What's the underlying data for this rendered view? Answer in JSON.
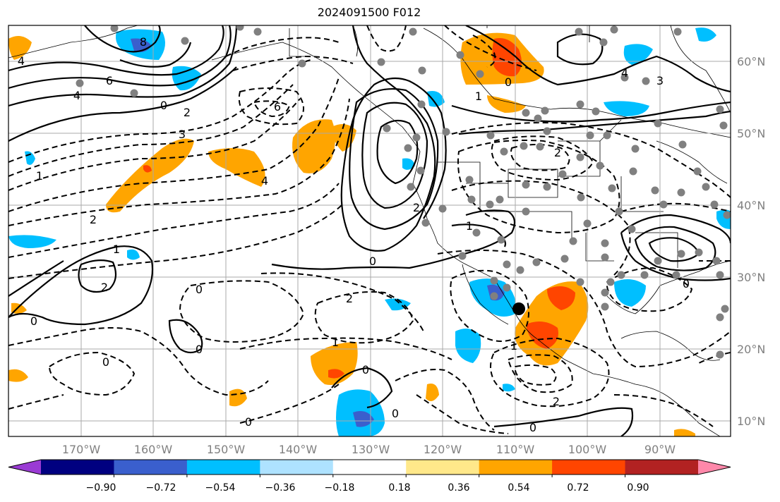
{
  "title": "2024091500 F012",
  "map": {
    "lat_labels": [
      "60°N",
      "50°N",
      "40°N",
      "30°N",
      "20°N",
      "10°N"
    ],
    "lon_labels": [
      "170°W",
      "160°W",
      "150°W",
      "140°W",
      "130°W",
      "120°W",
      "110°W",
      "100°W",
      "90°W"
    ],
    "contour_labels": [
      "4",
      "6",
      "8",
      "4",
      "0",
      "2",
      "3",
      "6",
      "4",
      "1",
      "2",
      "1",
      "2",
      "0",
      "0",
      "2",
      "0",
      "1",
      "0",
      "0",
      "0",
      "0",
      "1",
      "2",
      "1",
      "4",
      "3",
      "2",
      "0",
      "0",
      "2",
      "0",
      "1",
      "0"
    ]
  },
  "colorbar": {
    "tick_labels": [
      "−0.90",
      "−0.72",
      "−0.54",
      "−0.36",
      "−0.18",
      "0.18",
      "0.36",
      "0.54",
      "0.72",
      "0.90"
    ],
    "colors": [
      "#9a3bd4",
      "#000080",
      "#3a5fcd",
      "#00bfff",
      "#aee2ff",
      "#ffffff",
      "#ffe88a",
      "#ffa500",
      "#ff4500",
      "#b22222",
      "#ff88aa"
    ]
  }
}
